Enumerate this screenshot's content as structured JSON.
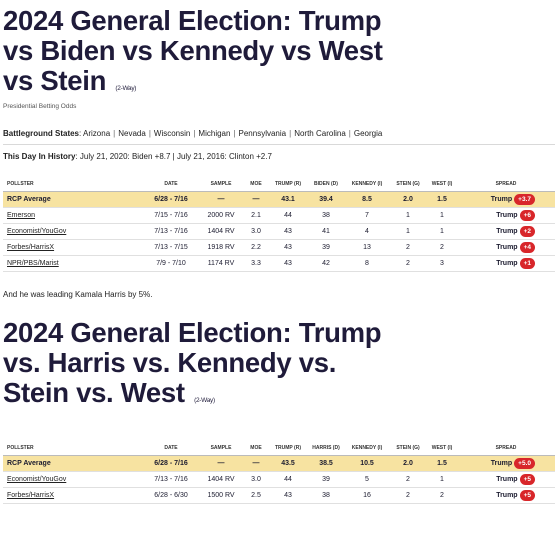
{
  "race1": {
    "title": "2024 General Election: Trump vs Biden vs Kennedy vs West vs Stein",
    "title_lines": [
      "2024 General Election: Trump",
      "vs Biden vs Kennedy vs West",
      "vs Stein"
    ],
    "tag": "(2-Way)",
    "subtitle": "Presidential Betting Odds",
    "battleground_label": "Battleground States",
    "battleground_states": [
      "Arizona",
      "Nevada",
      "Wisconsin",
      "Michigan",
      "Pennsylvania",
      "North Carolina",
      "Georgia"
    ],
    "history_label": "This Day In History",
    "history_text": "July 21, 2020: Biden +8.7 | July 21, 2016: Clinton +2.7",
    "columns": [
      "POLLSTER",
      "DATE",
      "SAMPLE",
      "MOE",
      "TRUMP (R)",
      "BIDEN (D)",
      "KENNEDY (I)",
      "STEIN (G)",
      "WEST (I)",
      "SPREAD"
    ],
    "rows": [
      {
        "pollster": "RCP Average",
        "date": "6/28 - 7/16",
        "sample": "—",
        "moe": "—",
        "c1": "43.1",
        "c2": "39.4",
        "c3": "8.5",
        "c4": "2.0",
        "c5": "1.5",
        "leader": "Trump",
        "margin": "+3.7"
      },
      {
        "pollster": "Emerson",
        "date": "7/15 - 7/16",
        "sample": "2000 RV",
        "moe": "2.1",
        "c1": "44",
        "c2": "38",
        "c3": "7",
        "c4": "1",
        "c5": "1",
        "leader": "Trump",
        "margin": "+6"
      },
      {
        "pollster": "Economist/YouGov",
        "date": "7/13 - 7/16",
        "sample": "1404 RV",
        "moe": "3.0",
        "c1": "43",
        "c2": "41",
        "c3": "4",
        "c4": "1",
        "c5": "1",
        "leader": "Trump",
        "margin": "+2"
      },
      {
        "pollster": "Forbes/HarrisX",
        "date": "7/13 - 7/15",
        "sample": "1918 RV",
        "moe": "2.2",
        "c1": "43",
        "c2": "39",
        "c3": "13",
        "c4": "2",
        "c5": "2",
        "leader": "Trump",
        "margin": "+4"
      },
      {
        "pollster": "NPR/PBS/Marist",
        "date": "7/9 - 7/10",
        "sample": "1174 RV",
        "moe": "3.3",
        "c1": "43",
        "c2": "42",
        "c3": "8",
        "c4": "2",
        "c5": "3",
        "leader": "Trump",
        "margin": "+1"
      }
    ]
  },
  "sentence": "And he was leading Kamala Harris by 5%.",
  "race2": {
    "title": "2024 General Election: Trump vs. Harris vs. Kennedy vs. Stein vs. West",
    "title_lines": [
      "2024 General Election: Trump",
      "vs. Harris vs. Kennedy vs.",
      "Stein vs. West"
    ],
    "tag": "(2-Way)",
    "columns": [
      "POLLSTER",
      "DATE",
      "SAMPLE",
      "MOE",
      "TRUMP (R)",
      "HARRIS (D)",
      "KENNEDY (I)",
      "STEIN (G)",
      "WEST (I)",
      "SPREAD"
    ],
    "rows": [
      {
        "pollster": "RCP Average",
        "date": "6/28 - 7/16",
        "sample": "—",
        "moe": "—",
        "c1": "43.5",
        "c2": "38.5",
        "c3": "10.5",
        "c4": "2.0",
        "c5": "1.5",
        "leader": "Trump",
        "margin": "+5.0"
      },
      {
        "pollster": "Economist/YouGov",
        "date": "7/13 - 7/16",
        "sample": "1404 RV",
        "moe": "3.0",
        "c1": "44",
        "c2": "39",
        "c3": "5",
        "c4": "2",
        "c5": "1",
        "leader": "Trump",
        "margin": "+5"
      },
      {
        "pollster": "Forbes/HarrisX",
        "date": "6/28 - 6/30",
        "sample": "1500 RV",
        "moe": "2.5",
        "c1": "43",
        "c2": "38",
        "c3": "16",
        "c4": "2",
        "c5": "2",
        "leader": "Trump",
        "margin": "+5"
      }
    ]
  },
  "colors": {
    "average_row": "#f7e3a1",
    "spread_badge": "#d8262a",
    "title": "#1f1b3a"
  }
}
